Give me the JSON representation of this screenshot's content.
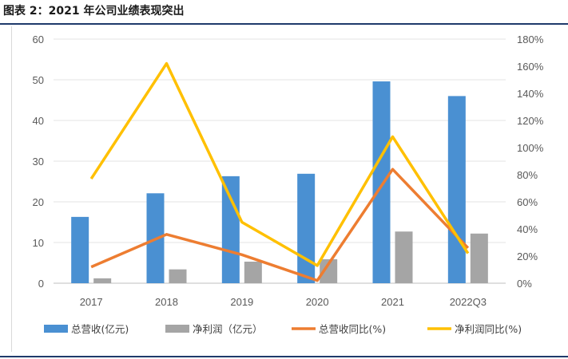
{
  "caption": "图表 2：2021 年公司业绩表现突出",
  "chart_data": {
    "type": "bar",
    "title": "",
    "categories": [
      "2017",
      "2018",
      "2019",
      "2020",
      "2021",
      "2022Q3"
    ],
    "series": [
      {
        "name": "总营收(亿元)",
        "kind": "bar",
        "axis": "left",
        "color": "#4a90d2",
        "values": [
          16.3,
          22.1,
          26.3,
          26.9,
          49.6,
          46.0
        ]
      },
      {
        "name": "净利润（亿元）",
        "kind": "bar",
        "axis": "left",
        "color": "#a5a5a5",
        "values": [
          1.2,
          3.4,
          5.3,
          5.9,
          12.7,
          12.2
        ]
      },
      {
        "name": "总营收同比(%)",
        "kind": "line",
        "axis": "right",
        "color": "#ed7d31",
        "values": [
          12,
          36,
          21,
          2,
          84,
          26
        ]
      },
      {
        "name": "净利润同比(%)",
        "kind": "line",
        "axis": "right",
        "color": "#ffc000",
        "values": [
          77,
          162,
          45,
          13,
          108,
          22
        ]
      }
    ],
    "y_left": {
      "min": 0,
      "max": 60,
      "ticks": [
        "0",
        "10",
        "20",
        "30",
        "40",
        "50",
        "60"
      ]
    },
    "y_right": {
      "min": 0,
      "max": 180,
      "ticks": [
        "0%",
        "20%",
        "40%",
        "60%",
        "80%",
        "100%",
        "120%",
        "140%",
        "160%",
        "180%"
      ]
    },
    "grid": true,
    "legend": "bottom"
  }
}
